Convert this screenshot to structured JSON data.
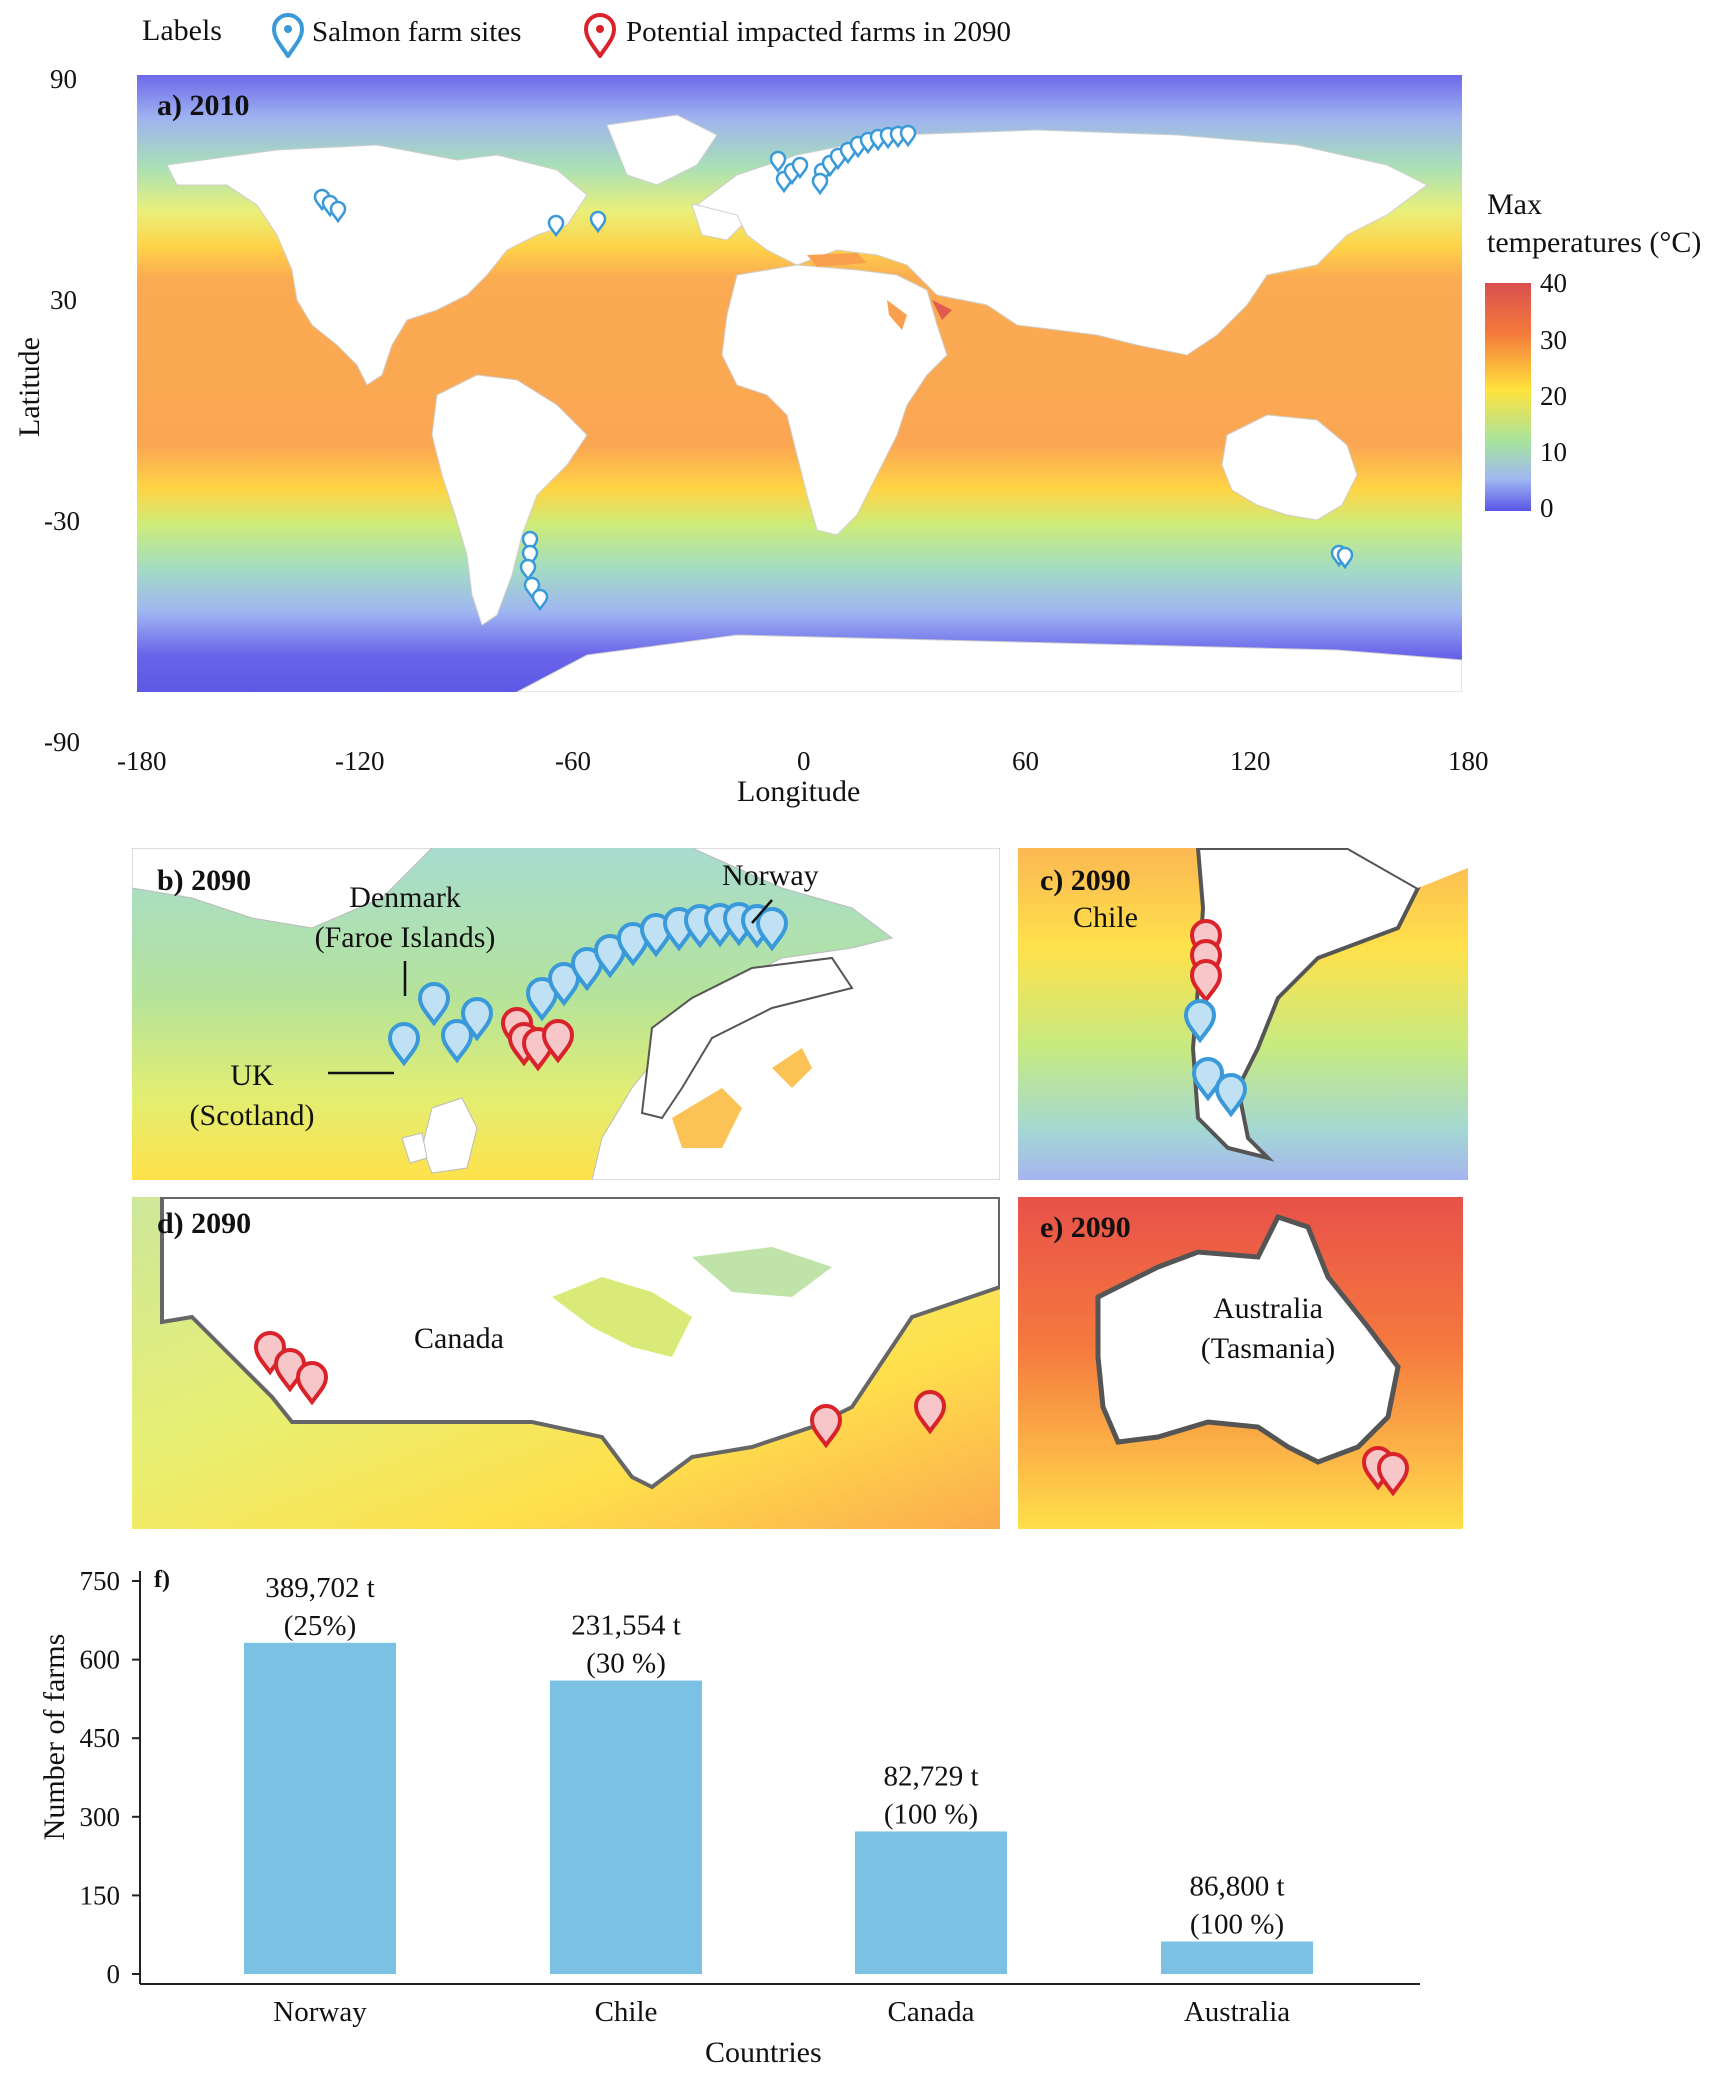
{
  "legend": {
    "title": "Labels",
    "items": [
      {
        "label": "Salmon farm sites",
        "color": "#3a9ad9",
        "icon": "map-pin-icon"
      },
      {
        "label": "Potential impacted farms in 2090",
        "color": "#d9232b",
        "icon": "map-pin-icon"
      }
    ]
  },
  "colorbar": {
    "title_line1": "Max",
    "title_line2": "temperatures (°C)",
    "ticks": [
      "40",
      "30",
      "20",
      "10",
      "0"
    ],
    "colors": [
      "#d94f4f",
      "#f47a3c",
      "#ffe33d",
      "#a6e3a0",
      "#9fb7f2",
      "#5a55e6"
    ]
  },
  "map_a": {
    "label": "a)  2010",
    "ylabel": "Latitude",
    "xlabel": "Longitude",
    "lat_ticks": [
      "90",
      "30",
      "-30",
      "-90"
    ],
    "lon_ticks": [
      "-180",
      "-120",
      "-60",
      "0",
      "60",
      "120",
      "180"
    ]
  },
  "panel_b": {
    "label": "b)  2090",
    "norway": "Norway",
    "denmark_line1": "Denmark",
    "denmark_line2": "(Faroe Islands)",
    "uk_line1": "UK",
    "uk_line2": "(Scotland)"
  },
  "panel_c": {
    "label": "c)  2090",
    "country": "Chile"
  },
  "panel_d": {
    "label": "d)  2090",
    "country": "Canada"
  },
  "panel_e": {
    "label": "e)  2090",
    "country_line1": "Australia",
    "country_line2": "(Tasmania)"
  },
  "chart_data": {
    "type": "bar",
    "panel_label": "f)",
    "categories": [
      "Norway",
      "Chile",
      "Canada",
      "Australia"
    ],
    "values": [
      632,
      560,
      272,
      62
    ],
    "annotations": [
      {
        "line1": "389,702 t",
        "line2": "(25%)"
      },
      {
        "line1": "231,554 t",
        "line2": "(30 %)"
      },
      {
        "line1": "82,729 t",
        "line2": "(100 %)"
      },
      {
        "line1": "86,800 t",
        "line2": "(100 %)"
      }
    ],
    "xlabel": "Countries",
    "ylabel": "Number of farms",
    "ylim": [
      0,
      750
    ],
    "yticks": [
      0,
      150,
      300,
      450,
      600,
      750
    ],
    "bar_color": "#7bc1e4"
  }
}
